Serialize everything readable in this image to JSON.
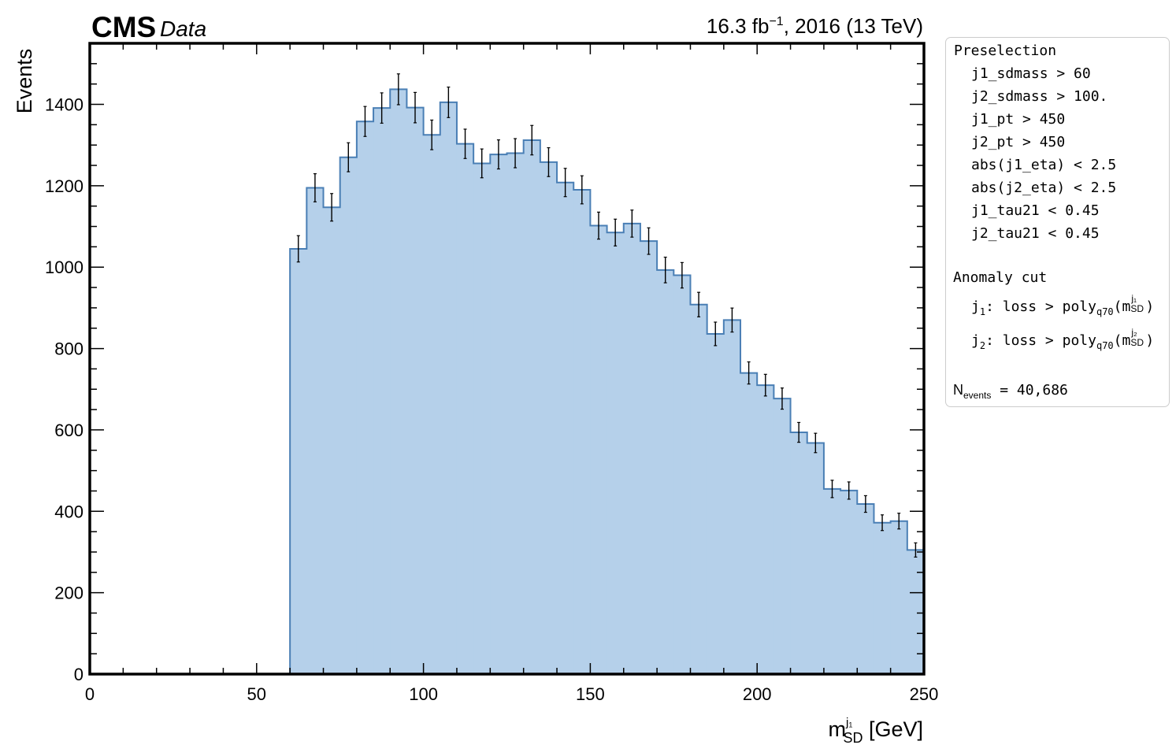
{
  "header": {
    "experiment": "CMS",
    "label": "Data",
    "lumi_prefix": "16.3 fb",
    "lumi_exp": "−1",
    "lumi_suffix": ", 2016 (13 TeV)"
  },
  "chart_data": {
    "type": "bar",
    "style": "step-filled histogram with error bars",
    "fill_color": "#b5d0ea",
    "edge_color": "#4a7fb5",
    "error_color": "#000000",
    "xlabel_main": "m",
    "xlabel_sup": "j₁",
    "xlabel_sub": "SD",
    "xlabel_unit": " [GeV]",
    "ylabel": "Events",
    "xlim": [
      0,
      250
    ],
    "ylim": [
      0,
      1550
    ],
    "xticks": [
      0,
      50,
      100,
      150,
      200,
      250
    ],
    "yticks": [
      0,
      200,
      400,
      600,
      800,
      1000,
      1200,
      1400
    ],
    "bin_width": 5,
    "bin_edges_start": 60,
    "values": [
      1045,
      1195,
      1147,
      1270,
      1358,
      1391,
      1437,
      1392,
      1325,
      1405,
      1303,
      1255,
      1277,
      1280,
      1312,
      1258,
      1208,
      1190,
      1102,
      1085,
      1107,
      1064,
      993,
      980,
      908,
      836,
      870,
      740,
      710,
      677,
      594,
      568,
      455,
      451,
      418,
      372,
      376,
      305
    ]
  },
  "legend": {
    "heading1": "Preselection",
    "cuts": [
      "j1_sdmass > 60",
      "j2_sdmass > 100.",
      "j1_pt > 450",
      "j2_pt > 450",
      "abs(j1_eta) < 2.5",
      "abs(j2_eta) < 2.5",
      "j1_tau21 < 0.45",
      "j2_tau21 < 0.45"
    ],
    "heading2": "Anomaly cut",
    "anomaly1": {
      "jet": "j",
      "jet_sub": "1",
      "text": ": loss > poly",
      "q": "q70",
      "m": "(m",
      "m_sup": "j₁",
      "m_sub": "SD",
      "close": ")"
    },
    "anomaly2": {
      "jet": "j",
      "jet_sub": "2",
      "text": ": loss > poly",
      "q": "q70",
      "m": "(m",
      "m_sup": "j₂",
      "m_sub": "SD",
      "close": ")"
    },
    "nevents_label": "N",
    "nevents_sub": "events",
    "nevents_value": " = 40,686"
  }
}
